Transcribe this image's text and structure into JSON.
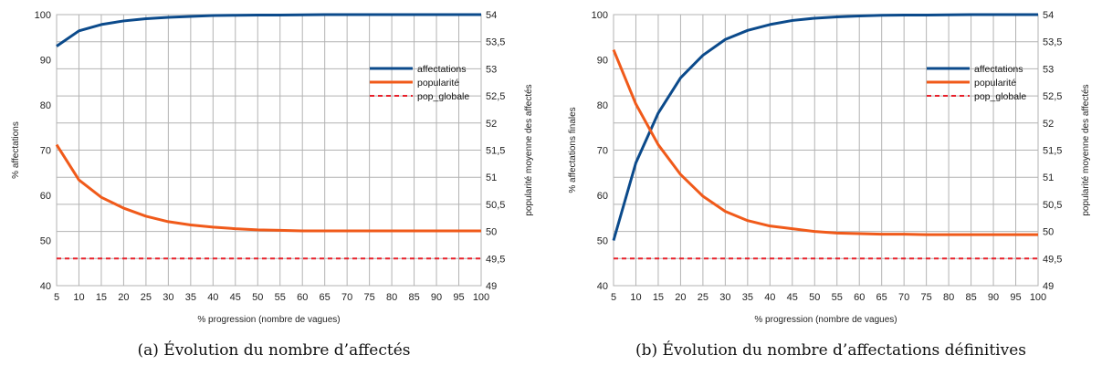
{
  "chart_data": [
    {
      "type": "line",
      "caption": "(a) Évolution du nombre d’affectés",
      "xlabel": "% progression (nombre de vagues)",
      "ylabel": "% affectations",
      "y2label": "popularité moyenne des affectés",
      "x": [
        5,
        10,
        15,
        20,
        25,
        30,
        35,
        40,
        45,
        50,
        55,
        60,
        65,
        70,
        75,
        80,
        85,
        90,
        95,
        100
      ],
      "xticks": [
        "5",
        "10",
        "15",
        "20",
        "25",
        "30",
        "35",
        "40",
        "45",
        "50",
        "55",
        "60",
        "65",
        "70",
        "75",
        "80",
        "85",
        "90",
        "95",
        "100"
      ],
      "ylim": [
        40,
        100
      ],
      "yticks": [
        "40",
        "50",
        "60",
        "70",
        "80",
        "90",
        "100"
      ],
      "y2lim": [
        49,
        54
      ],
      "y2ticks": [
        "49",
        "49,5",
        "50",
        "50,5",
        "51",
        "51,5",
        "52",
        "52,5",
        "53",
        "53,5",
        "54"
      ],
      "legend_position": "right",
      "series": [
        {
          "name": "affectations",
          "axis": "left",
          "color": "#0b4a8b",
          "style": "solid",
          "values": [
            93,
            96.4,
            97.8,
            98.6,
            99.1,
            99.4,
            99.6,
            99.8,
            99.85,
            99.9,
            99.9,
            99.95,
            100,
            100,
            100,
            100,
            100,
            100,
            100,
            100
          ]
        },
        {
          "name": "popularité",
          "axis": "right",
          "color": "#f05a1a",
          "style": "solid",
          "values": [
            51.6,
            50.95,
            50.63,
            50.43,
            50.28,
            50.18,
            50.12,
            50.08,
            50.05,
            50.03,
            50.02,
            50.01,
            50.01,
            50.01,
            50.01,
            50.01,
            50.01,
            50.01,
            50.01,
            50.01
          ]
        },
        {
          "name": "pop_globale",
          "axis": "right",
          "color": "#e8202a",
          "style": "dashed",
          "values": [
            49.5,
            49.5,
            49.5,
            49.5,
            49.5,
            49.5,
            49.5,
            49.5,
            49.5,
            49.5,
            49.5,
            49.5,
            49.5,
            49.5,
            49.5,
            49.5,
            49.5,
            49.5,
            49.5,
            49.5
          ]
        }
      ]
    },
    {
      "type": "line",
      "caption": "(b) Évolution du nombre d’affectations définitives",
      "xlabel": "% progression (nombre de vagues)",
      "ylabel": "% affectations finales",
      "y2label": "popularité moyenne des affectés",
      "x": [
        5,
        10,
        15,
        20,
        25,
        30,
        35,
        40,
        45,
        50,
        55,
        60,
        65,
        70,
        75,
        80,
        85,
        90,
        95,
        100
      ],
      "xticks": [
        "5",
        "10",
        "15",
        "20",
        "25",
        "30",
        "35",
        "40",
        "45",
        "50",
        "55",
        "60",
        "65",
        "70",
        "75",
        "80",
        "85",
        "90",
        "95",
        "100"
      ],
      "ylim": [
        40,
        100
      ],
      "yticks": [
        "40",
        "50",
        "60",
        "70",
        "80",
        "90",
        "100"
      ],
      "y2lim": [
        49,
        54
      ],
      "y2ticks": [
        "49",
        "49,5",
        "50",
        "50,5",
        "51",
        "51,5",
        "52",
        "52,5",
        "53",
        "53,5",
        "54"
      ],
      "legend_position": "right",
      "series": [
        {
          "name": "affectations",
          "axis": "left",
          "color": "#0b4a8b",
          "style": "solid",
          "values": [
            50,
            67.2,
            78.2,
            86,
            91,
            94.5,
            96.5,
            97.8,
            98.7,
            99.2,
            99.5,
            99.7,
            99.85,
            99.9,
            99.9,
            99.95,
            100,
            100,
            100,
            100
          ]
        },
        {
          "name": "popularité",
          "axis": "right",
          "color": "#f05a1a",
          "style": "solid",
          "values": [
            53.35,
            52.35,
            51.6,
            51.05,
            50.65,
            50.37,
            50.2,
            50.1,
            50.05,
            50,
            49.97,
            49.96,
            49.95,
            49.95,
            49.94,
            49.94,
            49.94,
            49.94,
            49.94,
            49.94
          ]
        },
        {
          "name": "pop_globale",
          "axis": "right",
          "color": "#e8202a",
          "style": "dashed",
          "values": [
            49.5,
            49.5,
            49.5,
            49.5,
            49.5,
            49.5,
            49.5,
            49.5,
            49.5,
            49.5,
            49.5,
            49.5,
            49.5,
            49.5,
            49.5,
            49.5,
            49.5,
            49.5,
            49.5,
            49.5
          ]
        }
      ]
    }
  ]
}
